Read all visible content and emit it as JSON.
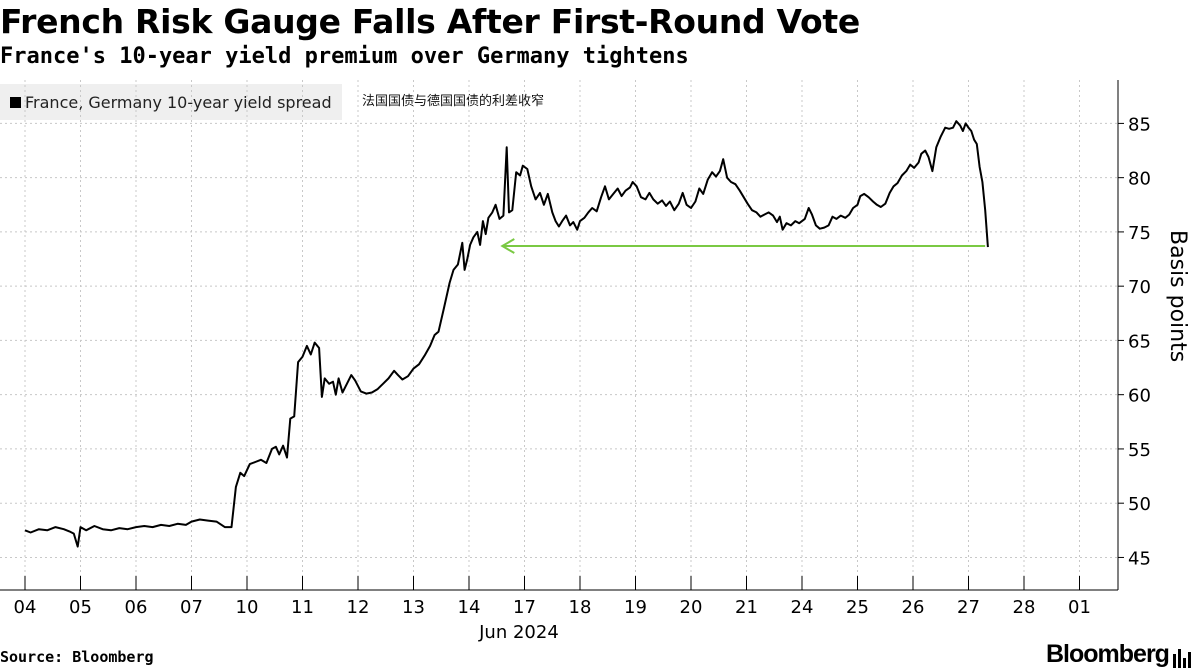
{
  "header": {
    "title": "French Risk Gauge Falls After First-Round Vote",
    "subtitle": "France's 10-year yield premium over Germany tightens"
  },
  "legend": {
    "label": "France, Germany 10-year yield spread"
  },
  "annotation": "法国国债与德国国债的利差收窄",
  "footer": {
    "source": "Source: Bloomberg",
    "brand": "Bloomberg"
  },
  "chart_data": {
    "type": "line",
    "title": "French Risk Gauge Falls After First-Round Vote",
    "subtitle": "France's 10-year yield premium over Germany tightens",
    "xlabel": "Jun 2024",
    "ylabel": "Basis points",
    "ylim": [
      42,
      89
    ],
    "yticks": [
      45,
      50,
      55,
      60,
      65,
      70,
      75,
      80,
      85
    ],
    "grid": true,
    "legend_position": "top-left",
    "categories": [
      "04",
      "05",
      "06",
      "07",
      "10",
      "11",
      "12",
      "13",
      "14",
      "17",
      "18",
      "19",
      "20",
      "21",
      "24",
      "25",
      "26",
      "27",
      "28",
      "01"
    ],
    "series": [
      {
        "name": "France, Germany 10-year yield spread",
        "color": "#000000",
        "points": [
          [
            0.0,
            47.5
          ],
          [
            0.1,
            47.3
          ],
          [
            0.25,
            47.6
          ],
          [
            0.4,
            47.5
          ],
          [
            0.55,
            47.8
          ],
          [
            0.7,
            47.6
          ],
          [
            0.8,
            47.4
          ],
          [
            0.88,
            47.2
          ],
          [
            0.95,
            46.0
          ],
          [
            1.0,
            47.8
          ],
          [
            1.1,
            47.5
          ],
          [
            1.25,
            47.9
          ],
          [
            1.4,
            47.6
          ],
          [
            1.55,
            47.5
          ],
          [
            1.7,
            47.7
          ],
          [
            1.85,
            47.6
          ],
          [
            2.0,
            47.8
          ],
          [
            2.15,
            47.9
          ],
          [
            2.3,
            47.8
          ],
          [
            2.45,
            48.0
          ],
          [
            2.6,
            47.9
          ],
          [
            2.75,
            48.1
          ],
          [
            2.9,
            48.0
          ],
          [
            3.0,
            48.3
          ],
          [
            3.15,
            48.5
          ],
          [
            3.3,
            48.4
          ],
          [
            3.45,
            48.3
          ],
          [
            3.6,
            47.8
          ],
          [
            3.72,
            47.8
          ],
          [
            3.8,
            51.5
          ],
          [
            3.88,
            52.8
          ],
          [
            3.95,
            52.5
          ],
          [
            4.05,
            53.6
          ],
          [
            4.15,
            53.8
          ],
          [
            4.25,
            54.0
          ],
          [
            4.35,
            53.7
          ],
          [
            4.45,
            55.0
          ],
          [
            4.52,
            55.2
          ],
          [
            4.58,
            54.5
          ],
          [
            4.65,
            55.3
          ],
          [
            4.72,
            54.2
          ],
          [
            4.78,
            57.8
          ],
          [
            4.85,
            58.0
          ],
          [
            4.92,
            63.0
          ],
          [
            5.0,
            63.5
          ],
          [
            5.08,
            64.5
          ],
          [
            5.15,
            63.7
          ],
          [
            5.22,
            64.8
          ],
          [
            5.3,
            64.3
          ],
          [
            5.35,
            59.8
          ],
          [
            5.4,
            61.5
          ],
          [
            5.48,
            61.0
          ],
          [
            5.55,
            61.2
          ],
          [
            5.6,
            60.0
          ],
          [
            5.65,
            61.5
          ],
          [
            5.72,
            60.2
          ],
          [
            5.8,
            61.0
          ],
          [
            5.88,
            61.8
          ],
          [
            5.95,
            61.3
          ],
          [
            6.05,
            60.3
          ],
          [
            6.15,
            60.1
          ],
          [
            6.25,
            60.2
          ],
          [
            6.35,
            60.5
          ],
          [
            6.45,
            61.0
          ],
          [
            6.55,
            61.5
          ],
          [
            6.65,
            62.2
          ],
          [
            6.72,
            61.8
          ],
          [
            6.8,
            61.4
          ],
          [
            6.9,
            61.7
          ],
          [
            7.0,
            62.4
          ],
          [
            7.1,
            62.8
          ],
          [
            7.2,
            63.6
          ],
          [
            7.3,
            64.5
          ],
          [
            7.38,
            65.5
          ],
          [
            7.45,
            65.8
          ],
          [
            7.55,
            68.0
          ],
          [
            7.65,
            70.3
          ],
          [
            7.72,
            71.5
          ],
          [
            7.8,
            72.0
          ],
          [
            7.88,
            74.0
          ],
          [
            7.92,
            71.5
          ],
          [
            7.97,
            72.5
          ],
          [
            8.02,
            73.8
          ],
          [
            8.08,
            74.5
          ],
          [
            8.15,
            75.0
          ],
          [
            8.2,
            73.8
          ],
          [
            8.25,
            76.0
          ],
          [
            8.3,
            74.8
          ],
          [
            8.35,
            76.3
          ],
          [
            8.42,
            76.8
          ],
          [
            8.48,
            77.5
          ],
          [
            8.55,
            76.2
          ],
          [
            8.62,
            76.5
          ],
          [
            8.68,
            82.8
          ],
          [
            8.72,
            76.8
          ],
          [
            8.78,
            77.0
          ],
          [
            8.85,
            80.5
          ],
          [
            8.92,
            80.2
          ],
          [
            8.97,
            81.1
          ],
          [
            9.05,
            80.8
          ],
          [
            9.12,
            79.2
          ],
          [
            9.2,
            78.0
          ],
          [
            9.28,
            78.6
          ],
          [
            9.35,
            77.5
          ],
          [
            9.42,
            78.5
          ],
          [
            9.5,
            76.8
          ],
          [
            9.56,
            76.0
          ],
          [
            9.62,
            75.5
          ],
          [
            9.68,
            76.0
          ],
          [
            9.75,
            76.5
          ],
          [
            9.82,
            75.6
          ],
          [
            9.88,
            75.9
          ],
          [
            9.95,
            75.2
          ],
          [
            10.0,
            76.0
          ],
          [
            10.08,
            76.3
          ],
          [
            10.15,
            76.8
          ],
          [
            10.22,
            77.2
          ],
          [
            10.3,
            76.9
          ],
          [
            10.38,
            78.2
          ],
          [
            10.45,
            79.2
          ],
          [
            10.52,
            78.0
          ],
          [
            10.6,
            78.5
          ],
          [
            10.68,
            79.0
          ],
          [
            10.75,
            78.3
          ],
          [
            10.82,
            78.8
          ],
          [
            10.9,
            79.1
          ],
          [
            10.95,
            79.6
          ],
          [
            11.02,
            79.2
          ],
          [
            11.1,
            78.2
          ],
          [
            11.18,
            78.0
          ],
          [
            11.25,
            78.6
          ],
          [
            11.32,
            78.0
          ],
          [
            11.4,
            77.6
          ],
          [
            11.48,
            77.9
          ],
          [
            11.55,
            77.4
          ],
          [
            11.62,
            77.8
          ],
          [
            11.7,
            77.0
          ],
          [
            11.78,
            77.6
          ],
          [
            11.85,
            78.6
          ],
          [
            11.92,
            77.5
          ],
          [
            12.0,
            77.2
          ],
          [
            12.08,
            77.8
          ],
          [
            12.15,
            79.0
          ],
          [
            12.22,
            78.5
          ],
          [
            12.3,
            79.8
          ],
          [
            12.38,
            80.5
          ],
          [
            12.45,
            80.1
          ],
          [
            12.52,
            80.6
          ],
          [
            12.58,
            81.7
          ],
          [
            12.65,
            80.0
          ],
          [
            12.72,
            79.6
          ],
          [
            12.8,
            79.4
          ],
          [
            12.88,
            78.8
          ],
          [
            12.95,
            78.2
          ],
          [
            13.02,
            77.6
          ],
          [
            13.1,
            77.0
          ],
          [
            13.18,
            76.8
          ],
          [
            13.25,
            76.4
          ],
          [
            13.32,
            76.6
          ],
          [
            13.4,
            76.8
          ],
          [
            13.48,
            76.5
          ],
          [
            13.55,
            75.9
          ],
          [
            13.6,
            76.4
          ],
          [
            13.65,
            75.2
          ],
          [
            13.72,
            75.8
          ],
          [
            13.8,
            75.6
          ],
          [
            13.88,
            76.0
          ],
          [
            13.95,
            75.8
          ],
          [
            14.05,
            76.2
          ],
          [
            14.12,
            77.2
          ],
          [
            14.18,
            76.6
          ],
          [
            14.25,
            75.6
          ],
          [
            14.32,
            75.3
          ],
          [
            14.4,
            75.4
          ],
          [
            14.48,
            75.6
          ],
          [
            14.55,
            76.4
          ],
          [
            14.62,
            76.2
          ],
          [
            14.7,
            76.5
          ],
          [
            14.78,
            76.3
          ],
          [
            14.85,
            76.6
          ],
          [
            14.92,
            77.2
          ],
          [
            15.0,
            77.5
          ],
          [
            15.05,
            78.3
          ],
          [
            15.12,
            78.5
          ],
          [
            15.2,
            78.2
          ],
          [
            15.28,
            77.8
          ],
          [
            15.35,
            77.5
          ],
          [
            15.42,
            77.3
          ],
          [
            15.5,
            77.6
          ],
          [
            15.58,
            78.6
          ],
          [
            15.65,
            79.2
          ],
          [
            15.72,
            79.5
          ],
          [
            15.8,
            80.2
          ],
          [
            15.88,
            80.6
          ],
          [
            15.95,
            81.2
          ],
          [
            16.02,
            80.9
          ],
          [
            16.1,
            81.4
          ],
          [
            16.15,
            82.2
          ],
          [
            16.22,
            82.5
          ],
          [
            16.28,
            81.9
          ],
          [
            16.35,
            80.6
          ],
          [
            16.42,
            82.8
          ],
          [
            16.5,
            83.8
          ],
          [
            16.58,
            84.6
          ],
          [
            16.65,
            84.5
          ],
          [
            16.72,
            84.6
          ],
          [
            16.78,
            85.2
          ],
          [
            16.85,
            84.8
          ],
          [
            16.9,
            84.3
          ],
          [
            16.95,
            85.0
          ],
          [
            17.0,
            84.6
          ],
          [
            17.05,
            84.3
          ],
          [
            17.1,
            83.5
          ],
          [
            17.15,
            83.1
          ],
          [
            17.2,
            81.0
          ],
          [
            17.25,
            79.6
          ],
          [
            17.3,
            77.0
          ],
          [
            17.35,
            73.6
          ]
        ]
      }
    ],
    "annotations": [
      {
        "text": "法国国债与德国国债的利差收窄",
        "type": "arrow",
        "color": "#7ac943",
        "from": {
          "x": 17.3,
          "y": 73.7
        },
        "to": {
          "x": 8.6,
          "y": 73.7
        }
      }
    ]
  }
}
